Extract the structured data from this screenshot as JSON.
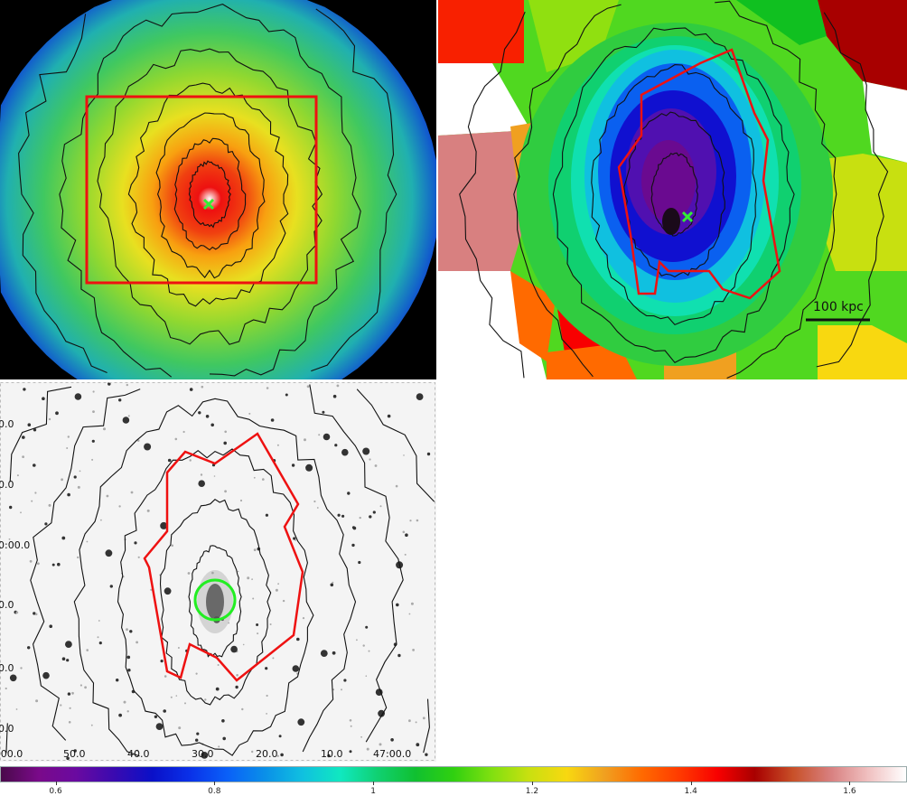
{
  "panels": {
    "xray_image": {
      "marker": "x",
      "marker_color": "#33ee33",
      "box_color": "#ee1111"
    },
    "temperature_map": {
      "scale_bar_label": "100 kpc",
      "marker": "x",
      "marker_color": "#33ee33",
      "region_color": "#ee1111"
    },
    "optical_image": {
      "y_tick_labels": [
        "0.0",
        "0.0",
        "0:00.0",
        "0.0",
        "0.0",
        "0.0"
      ],
      "x_tick_labels": [
        ":00.0",
        "50.0",
        "40.0",
        "30.0",
        "20.0",
        "10.0",
        "47:00.0"
      ],
      "circle_color": "#22ee22",
      "region_color": "#ee1111"
    }
  },
  "colorbar": {
    "range": [
      0.53,
      1.67
    ],
    "ticks": [
      {
        "value": 0.6,
        "label": "0.6"
      },
      {
        "value": 0.8,
        "label": "0.8"
      },
      {
        "value": 1.0,
        "label": "1"
      },
      {
        "value": 1.2,
        "label": "1.2"
      },
      {
        "value": 1.4,
        "label": "1.4"
      },
      {
        "value": 1.6,
        "label": "1.6"
      }
    ],
    "colors": [
      "#4a0a4a",
      "#7a0a8a",
      "#6a0aa0",
      "#3a0ab0",
      "#0a10c8",
      "#0a30e8",
      "#0a60f8",
      "#0a90e8",
      "#10c0e0",
      "#10e8c0",
      "#10d070",
      "#10c030",
      "#30d010",
      "#80e010",
      "#c8e010",
      "#f8d810",
      "#f0a020",
      "#ff6a00",
      "#ff3a00",
      "#f80000",
      "#a80000",
      "#c85028",
      "#d88080",
      "#f0c0c0",
      "#ffffff"
    ]
  }
}
